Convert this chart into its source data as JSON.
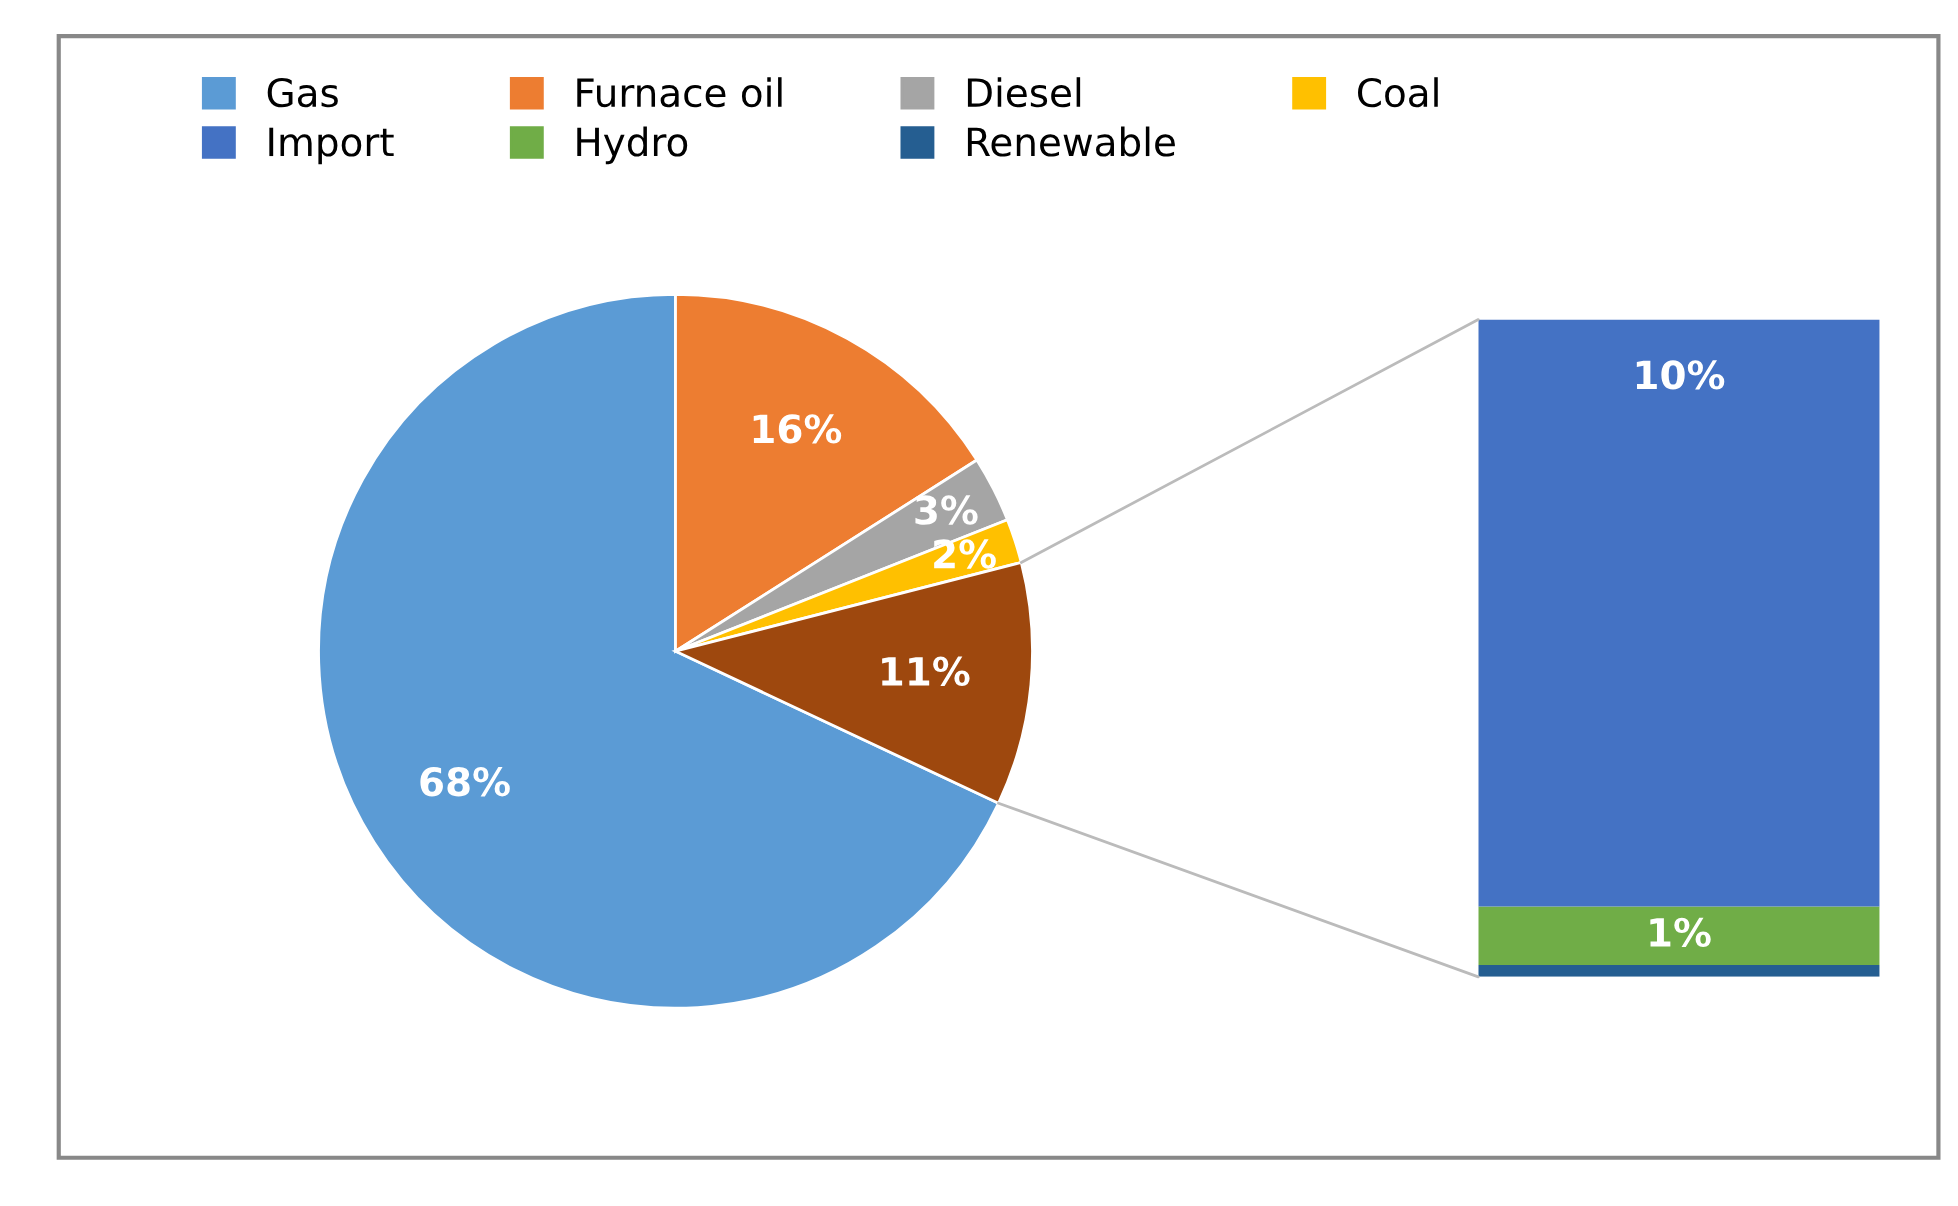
{
  "chart_data": [
    {
      "type": "pie",
      "categories": [
        "Gas",
        "Furnace oil",
        "Diesel",
        "Coal",
        null
      ],
      "values": [
        68,
        16,
        3,
        2,
        11
      ],
      "colors": [
        "#5b9bd5",
        "#ed7d31",
        "#a5a5a5",
        "#ffc000",
        "#9e480e"
      ],
      "value_labels": [
        "68%",
        "16%",
        "3%",
        "2%",
        "11%"
      ],
      "legend": "top"
    },
    {
      "type": "bar",
      "stacked": true,
      "categories": [
        null
      ],
      "legend": "top left",
      "series": [
        {
          "name": "Renewable",
          "color": "#255e91",
          "values": [
            0.2
          ]
        },
        {
          "name": "Hydro",
          "color": "#70ad47",
          "values": [
            1
          ],
          "value_labels": [
            "1%"
          ]
        },
        {
          "name": "Import",
          "color": "#4472c4",
          "values": [
            10
          ],
          "value_labels": [
            "10%"
          ]
        }
      ]
    }
  ]
}
